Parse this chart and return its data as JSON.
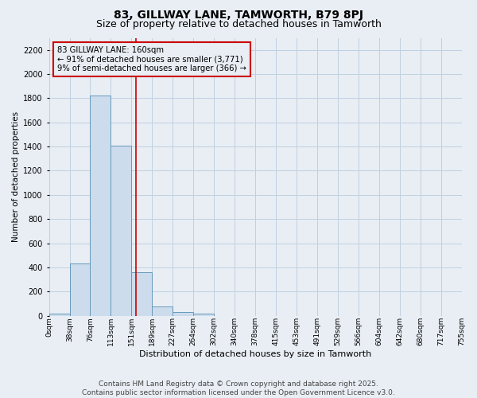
{
  "title": "83, GILLWAY LANE, TAMWORTH, B79 8PJ",
  "subtitle": "Size of property relative to detached houses in Tamworth",
  "xlabel": "Distribution of detached houses by size in Tamworth",
  "ylabel": "Number of detached properties",
  "footer_line1": "Contains HM Land Registry data © Crown copyright and database right 2025.",
  "footer_line2": "Contains public sector information licensed under the Open Government Licence v3.0.",
  "bin_labels": [
    "0sqm",
    "38sqm",
    "76sqm",
    "113sqm",
    "151sqm",
    "189sqm",
    "227sqm",
    "264sqm",
    "302sqm",
    "340sqm",
    "378sqm",
    "415sqm",
    "453sqm",
    "491sqm",
    "529sqm",
    "566sqm",
    "604sqm",
    "642sqm",
    "680sqm",
    "717sqm",
    "755sqm"
  ],
  "bar_values": [
    15,
    430,
    1820,
    1410,
    360,
    80,
    30,
    20,
    0,
    0,
    0,
    0,
    0,
    0,
    0,
    0,
    0,
    0,
    0,
    0
  ],
  "bar_color": "#ccdcec",
  "bar_edge_color": "#6699bb",
  "grid_color": "#c0d0e0",
  "vline_color": "#cc0000",
  "annotation_box_text": "83 GILLWAY LANE: 160sqm\n← 91% of detached houses are smaller (3,771)\n9% of semi-detached houses are larger (366) →",
  "annotation_box_color": "#cc0000",
  "ylim": [
    0,
    2300
  ],
  "yticks": [
    0,
    200,
    400,
    600,
    800,
    1000,
    1200,
    1400,
    1600,
    1800,
    2000,
    2200
  ],
  "background_color": "#e8eef4",
  "title_fontsize": 10,
  "subtitle_fontsize": 9,
  "footer_fontsize": 6.5
}
